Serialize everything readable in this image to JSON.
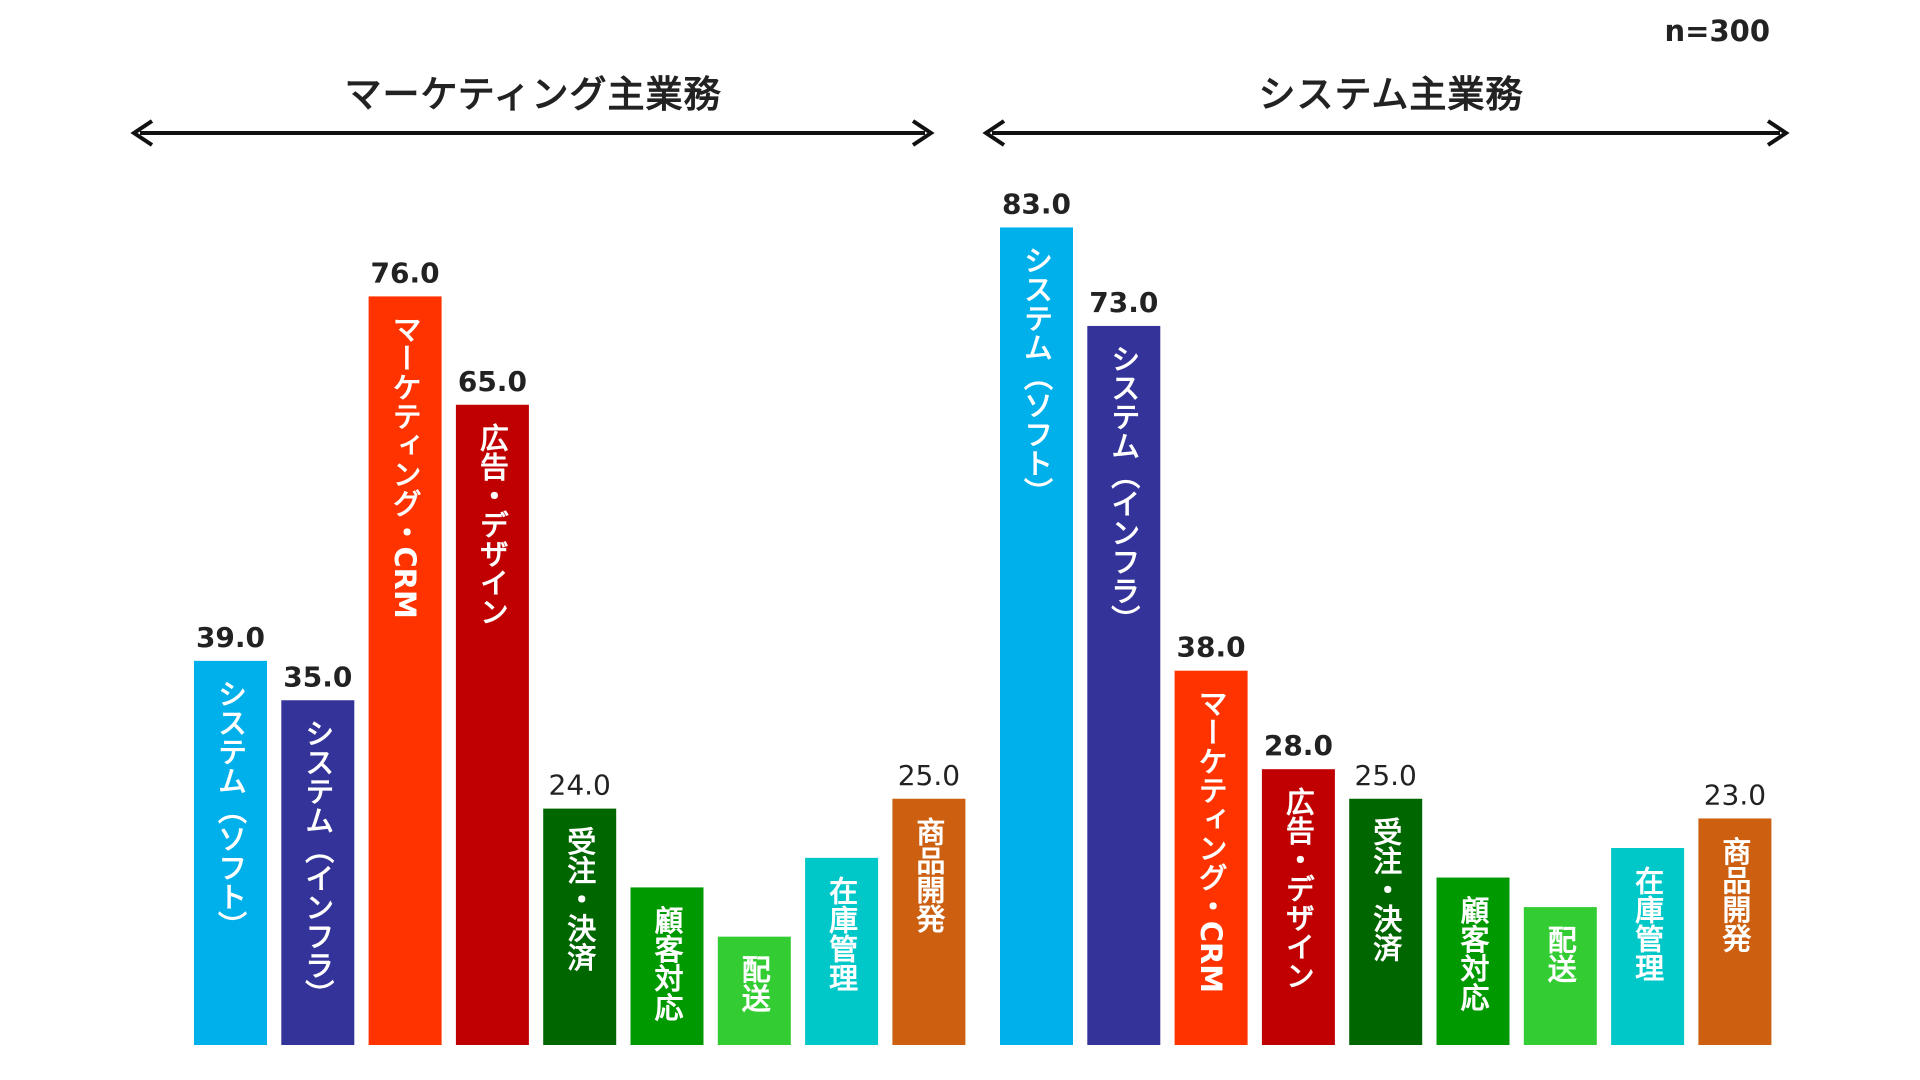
{
  "note": "n=300",
  "chart_data": [
    {
      "type": "bar",
      "title": "マーケティング主業務",
      "ylim": [
        0,
        100
      ],
      "categories": [
        "システム（ソフト）",
        "システム（インフラ）",
        "マーケティング・CRM",
        "広告・デザイン",
        "受注・決済",
        "顧客対応",
        "配送",
        "在庫管理",
        "商品開発"
      ],
      "values": [
        39.0,
        35.0,
        76.0,
        65.0,
        24.0,
        16.0,
        11.0,
        19.0,
        25.0
      ],
      "value_labels": [
        "39.0",
        "35.0",
        "76.0",
        "65.0",
        "24.0",
        "",
        "",
        "",
        "25.0"
      ],
      "bold_labels": [
        true,
        true,
        true,
        true,
        false,
        false,
        false,
        false,
        false
      ],
      "colors": [
        "#00b0eb",
        "#333399",
        "#ff3300",
        "#c00000",
        "#006600",
        "#009900",
        "#33cc33",
        "#00c8c8",
        "#cc6010"
      ]
    },
    {
      "type": "bar",
      "title": "システム主業務",
      "ylim": [
        0,
        100
      ],
      "categories": [
        "システム（ソフト）",
        "システム（インフラ）",
        "マーケティング・CRM",
        "広告・デザイン",
        "受注・決済",
        "顧客対応",
        "配送",
        "在庫管理",
        "商品開発"
      ],
      "values": [
        83.0,
        73.0,
        38.0,
        28.0,
        25.0,
        17.0,
        14.0,
        20.0,
        23.0
      ],
      "value_labels": [
        "83.0",
        "73.0",
        "38.0",
        "28.0",
        "25.0",
        "",
        "",
        "",
        "23.0"
      ],
      "bold_labels": [
        true,
        true,
        true,
        true,
        false,
        false,
        false,
        false,
        false
      ],
      "colors": [
        "#00b0eb",
        "#333399",
        "#ff3300",
        "#c00000",
        "#006600",
        "#009900",
        "#33cc33",
        "#00c8c8",
        "#cc6010"
      ]
    }
  ]
}
